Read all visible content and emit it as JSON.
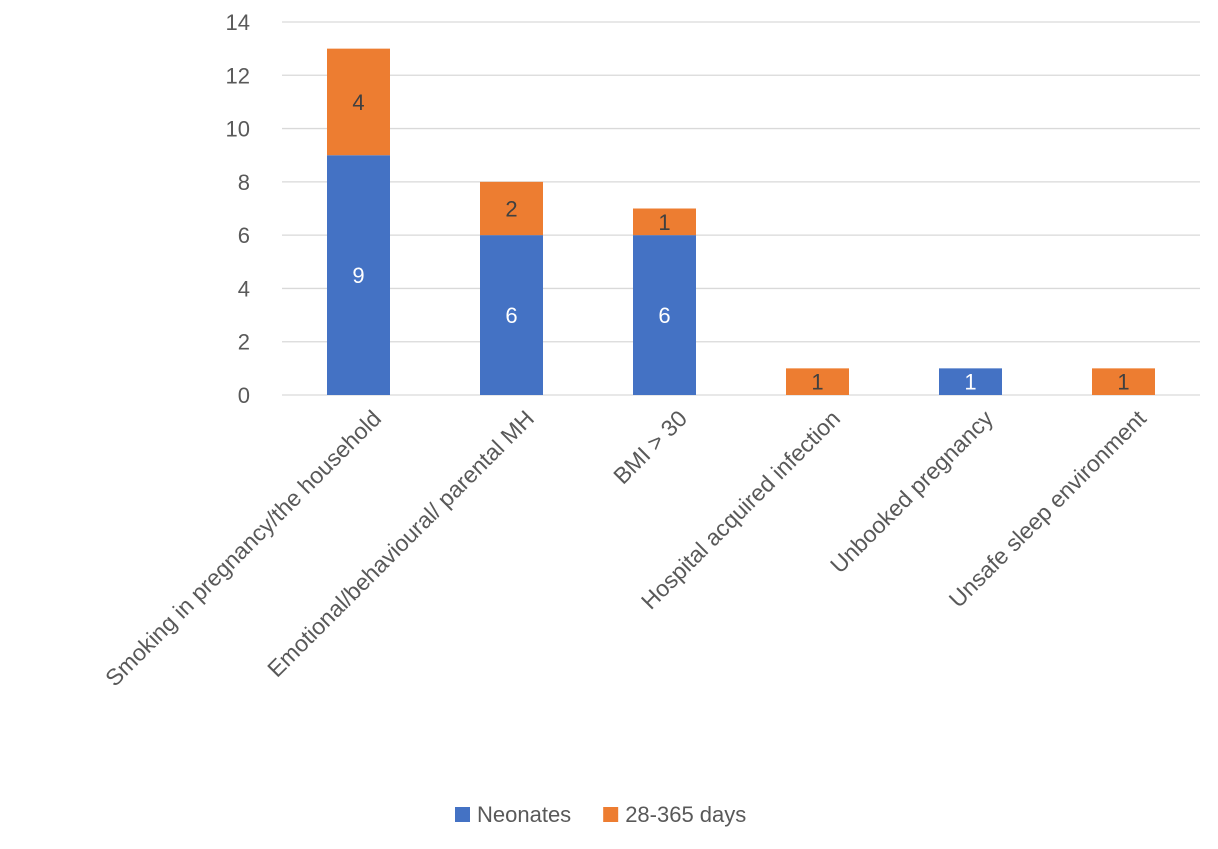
{
  "chart_data": {
    "type": "bar",
    "stacked": true,
    "title": "",
    "xlabel": "",
    "ylabel": "",
    "ylim": [
      0,
      14
    ],
    "yticks": [
      0,
      2,
      4,
      6,
      8,
      10,
      12,
      14
    ],
    "grid": true,
    "legend_position": "bottom",
    "categories": [
      "Smoking in pregnancy/the household",
      "Emotional/behavioural/ parental MH",
      "BMI > 30",
      "Hospital acquired infection",
      "Unbooked pregnancy",
      "Unsafe sleep environment"
    ],
    "series": [
      {
        "name": "Neonates",
        "color": "#4472C4",
        "label_color": "#ffffff",
        "values": [
          9,
          6,
          6,
          0,
          1,
          0
        ]
      },
      {
        "name": "28-365 days",
        "color": "#ED7D31",
        "label_color": "#404040",
        "values": [
          4,
          2,
          1,
          1,
          0,
          1
        ]
      }
    ]
  }
}
